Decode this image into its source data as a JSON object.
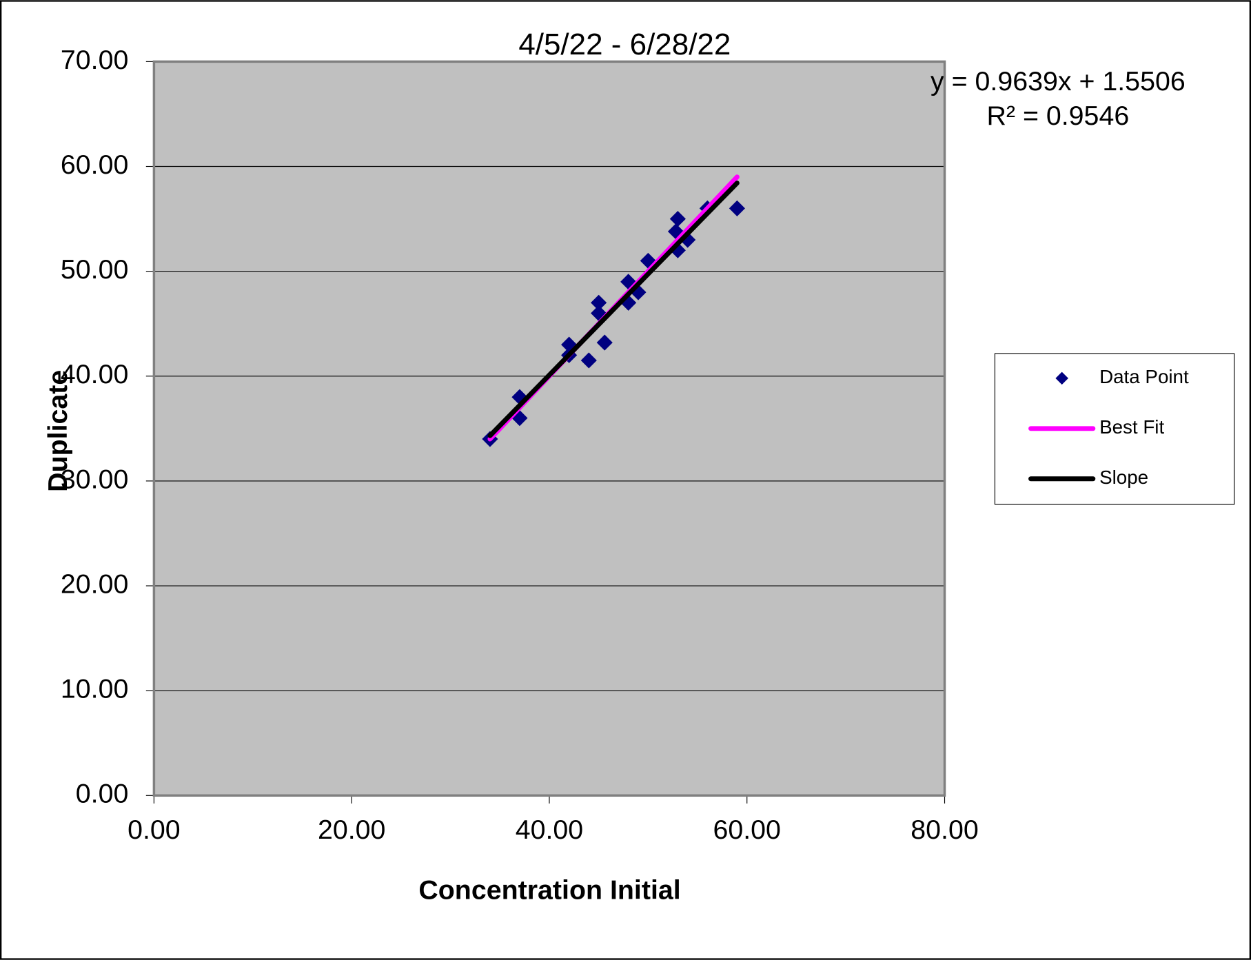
{
  "chart_data": {
    "type": "scatter",
    "title": "4/5/22 - 6/28/22",
    "x_label": "Concentration Initial",
    "y_label": "Duplicate",
    "annotations": [
      "y = 0.9639x + 1.5506",
      "R² = 0.9546"
    ],
    "xlim": [
      0,
      80
    ],
    "ylim": [
      0,
      70
    ],
    "xticks": [
      {
        "value": 0,
        "label": "0.00"
      },
      {
        "value": 20,
        "label": "20.00"
      },
      {
        "value": 40,
        "label": "40.00"
      },
      {
        "value": 60,
        "label": "60.00"
      },
      {
        "value": 80,
        "label": "80.00"
      }
    ],
    "yticks": [
      {
        "value": 0,
        "label": "0.00"
      },
      {
        "value": 10,
        "label": "10.00"
      },
      {
        "value": 20,
        "label": "20.00"
      },
      {
        "value": 30,
        "label": "30.00"
      },
      {
        "value": 40,
        "label": "40.00"
      },
      {
        "value": 50,
        "label": "50.00"
      },
      {
        "value": 60,
        "label": "60.00"
      },
      {
        "value": 70,
        "label": "70.00"
      }
    ],
    "grid": true,
    "legend": "right",
    "series": [
      {
        "name": "Data Point",
        "color": "#000080",
        "style": "marker",
        "x": [
          34,
          37,
          37,
          42,
          42,
          44,
          45,
          45,
          45.6,
          48,
          48,
          49,
          50,
          52.8,
          53,
          53,
          54,
          56,
          59
        ],
        "values": [
          34,
          36,
          38,
          42,
          43,
          41.5,
          46,
          47,
          43.2,
          47,
          49,
          48,
          51,
          53.8,
          55,
          52,
          53,
          56,
          56
        ]
      },
      {
        "name": "Best Fit",
        "color": "#ff00ff",
        "style": "line",
        "x": [
          34,
          59
        ],
        "values": [
          34,
          59
        ]
      },
      {
        "name": "Slope",
        "color": "#000000",
        "style": "line",
        "x": [
          34,
          59
        ],
        "values": [
          34.32,
          58.42
        ]
      }
    ]
  }
}
